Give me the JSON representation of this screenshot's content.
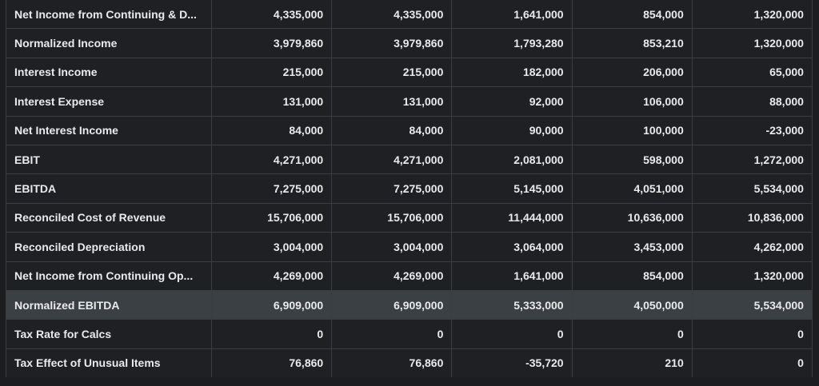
{
  "financials": {
    "rows": [
      {
        "label": "Net Income from Continuing & D...",
        "values": [
          "4,335,000",
          "4,335,000",
          "1,641,000",
          "854,000",
          "1,320,000"
        ]
      },
      {
        "label": "Normalized Income",
        "values": [
          "3,979,860",
          "3,979,860",
          "1,793,280",
          "853,210",
          "1,320,000"
        ]
      },
      {
        "label": "Interest Income",
        "values": [
          "215,000",
          "215,000",
          "182,000",
          "206,000",
          "65,000"
        ]
      },
      {
        "label": "Interest Expense",
        "values": [
          "131,000",
          "131,000",
          "92,000",
          "106,000",
          "88,000"
        ]
      },
      {
        "label": "Net Interest Income",
        "values": [
          "84,000",
          "84,000",
          "90,000",
          "100,000",
          "-23,000"
        ]
      },
      {
        "label": "EBIT",
        "values": [
          "4,271,000",
          "4,271,000",
          "2,081,000",
          "598,000",
          "1,272,000"
        ]
      },
      {
        "label": "EBITDA",
        "values": [
          "7,275,000",
          "7,275,000",
          "5,145,000",
          "4,051,000",
          "5,534,000"
        ]
      },
      {
        "label": "Reconciled Cost of Revenue",
        "values": [
          "15,706,000",
          "15,706,000",
          "11,444,000",
          "10,636,000",
          "10,836,000"
        ]
      },
      {
        "label": "Reconciled Depreciation",
        "values": [
          "3,004,000",
          "3,004,000",
          "3,064,000",
          "3,453,000",
          "4,262,000"
        ]
      },
      {
        "label": "Net Income from Continuing Op...",
        "values": [
          "4,269,000",
          "4,269,000",
          "1,641,000",
          "854,000",
          "1,320,000"
        ]
      },
      {
        "label": "Normalized EBITDA",
        "values": [
          "6,909,000",
          "6,909,000",
          "5,333,000",
          "4,050,000",
          "5,534,000"
        ]
      },
      {
        "label": "Tax Rate for Calcs",
        "values": [
          "0",
          "0",
          "0",
          "0",
          "0"
        ]
      },
      {
        "label": "Tax Effect of Unusual Items",
        "values": [
          "76,860",
          "76,860",
          "-35,720",
          "210",
          "0"
        ]
      }
    ],
    "highlighted_row_label": "Normalized EBITDA"
  },
  "colors": {
    "background": "#1b1d21",
    "cell_background": "#1e2024",
    "highlight_background": "#3b4045",
    "border": "#3a3d43",
    "text": "#e9eaec"
  }
}
